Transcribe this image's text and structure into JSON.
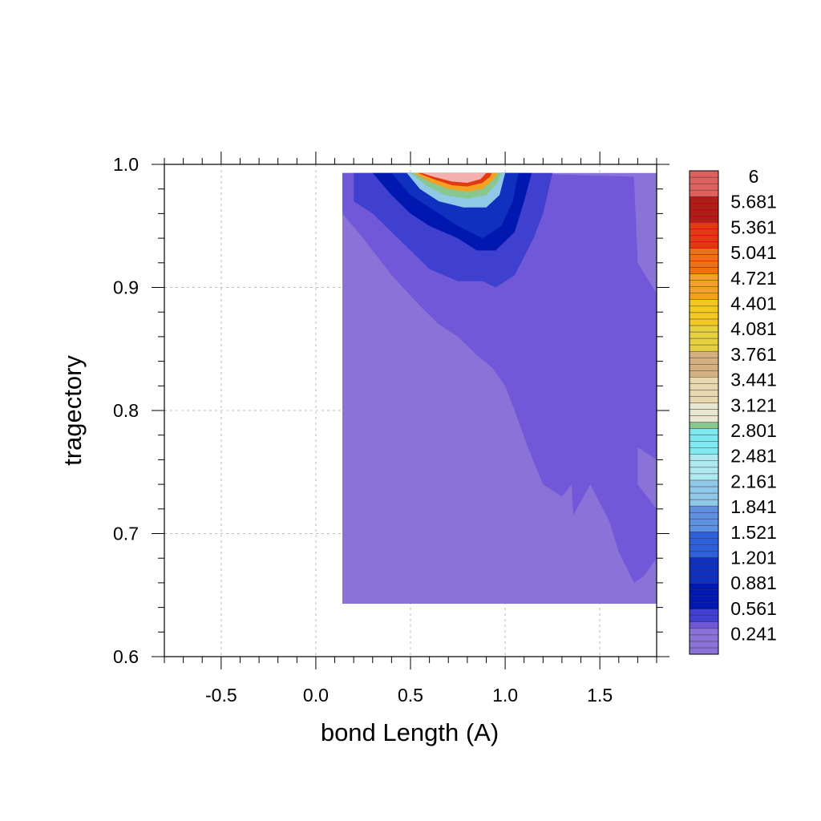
{
  "chart_data": {
    "type": "heatmap",
    "xlabel": "bond Length (A)",
    "ylabel": "tragectory",
    "xlim": [
      -0.8,
      1.8
    ],
    "ylim": [
      0.6,
      1.0
    ],
    "x_ticks": [
      "-0.5",
      "0.0",
      "0.5",
      "1.0",
      "1.5"
    ],
    "x_tick_values": [
      -0.5,
      0.0,
      0.5,
      1.0,
      1.5
    ],
    "y_ticks": [
      "0.6",
      "0.7",
      "0.8",
      "0.9",
      "1.0"
    ],
    "y_tick_values": [
      0.6,
      0.7,
      0.8,
      0.9,
      1.0
    ],
    "grid": true,
    "data_extent": {
      "x": [
        0.14,
        1.8
      ],
      "y": [
        0.643,
        0.993
      ]
    },
    "regions": [
      {
        "level": "0.241",
        "desc": "background",
        "polygon": [
          [
            0.14,
            0.643
          ],
          [
            1.8,
            0.643
          ],
          [
            1.8,
            0.993
          ],
          [
            0.14,
            0.993
          ]
        ]
      },
      {
        "level": "0.321",
        "polygon": [
          [
            0.14,
            0.96
          ],
          [
            0.25,
            0.94
          ],
          [
            0.4,
            0.91
          ],
          [
            0.55,
            0.885
          ],
          [
            0.65,
            0.87
          ],
          [
            0.75,
            0.86
          ],
          [
            0.85,
            0.845
          ],
          [
            0.93,
            0.835
          ],
          [
            1.0,
            0.82
          ],
          [
            1.05,
            0.8
          ],
          [
            1.12,
            0.77
          ],
          [
            1.2,
            0.74
          ],
          [
            1.3,
            0.73
          ],
          [
            1.35,
            0.74
          ],
          [
            1.36,
            0.715
          ],
          [
            1.45,
            0.74
          ],
          [
            1.55,
            0.71
          ],
          [
            1.6,
            0.685
          ],
          [
            1.68,
            0.66
          ],
          [
            1.73,
            0.665
          ],
          [
            1.8,
            0.68
          ],
          [
            1.8,
            0.72
          ],
          [
            1.7,
            0.74
          ],
          [
            1.7,
            0.77
          ],
          [
            1.8,
            0.76
          ],
          [
            1.8,
            0.895
          ],
          [
            1.7,
            0.92
          ],
          [
            1.68,
            0.99
          ],
          [
            1.0,
            0.993
          ],
          [
            0.14,
            0.993
          ]
        ]
      },
      {
        "level": "0.401",
        "polygon": [
          [
            0.2,
            0.993
          ],
          [
            0.2,
            0.97
          ],
          [
            0.3,
            0.96
          ],
          [
            0.4,
            0.945
          ],
          [
            0.5,
            0.93
          ],
          [
            0.6,
            0.915
          ],
          [
            0.75,
            0.905
          ],
          [
            0.88,
            0.905
          ],
          [
            0.95,
            0.9
          ],
          [
            1.05,
            0.91
          ],
          [
            1.15,
            0.94
          ],
          [
            1.2,
            0.96
          ],
          [
            1.25,
            0.993
          ]
        ]
      },
      {
        "level": "0.561",
        "polygon": [
          [
            0.3,
            0.993
          ],
          [
            0.4,
            0.975
          ],
          [
            0.5,
            0.96
          ],
          [
            0.6,
            0.95
          ],
          [
            0.75,
            0.94
          ],
          [
            0.85,
            0.93
          ],
          [
            0.95,
            0.93
          ],
          [
            1.05,
            0.945
          ],
          [
            1.1,
            0.97
          ],
          [
            1.14,
            0.993
          ]
        ]
      },
      {
        "level": "0.881",
        "polygon": [
          [
            0.4,
            0.993
          ],
          [
            0.5,
            0.975
          ],
          [
            0.6,
            0.965
          ],
          [
            0.75,
            0.95
          ],
          [
            0.88,
            0.94
          ],
          [
            0.98,
            0.95
          ],
          [
            1.04,
            0.97
          ],
          [
            1.07,
            0.993
          ]
        ]
      },
      {
        "level": "1.841",
        "polygon": [
          [
            0.48,
            0.993
          ],
          [
            0.55,
            0.98
          ],
          [
            0.65,
            0.97
          ],
          [
            0.78,
            0.965
          ],
          [
            0.9,
            0.965
          ],
          [
            0.97,
            0.975
          ],
          [
            1.0,
            0.993
          ]
        ]
      },
      {
        "level": "2.801",
        "polygon": [
          [
            0.5,
            0.993
          ],
          [
            0.58,
            0.983
          ],
          [
            0.68,
            0.975
          ],
          [
            0.8,
            0.972
          ],
          [
            0.9,
            0.975
          ],
          [
            0.96,
            0.985
          ],
          [
            0.98,
            0.993
          ]
        ]
      },
      {
        "level": "4.401",
        "polygon": [
          [
            0.52,
            0.993
          ],
          [
            0.6,
            0.986
          ],
          [
            0.7,
            0.98
          ],
          [
            0.8,
            0.978
          ],
          [
            0.88,
            0.98
          ],
          [
            0.94,
            0.988
          ],
          [
            0.96,
            0.993
          ]
        ]
      },
      {
        "level": "5.041",
        "polygon": [
          [
            0.54,
            0.993
          ],
          [
            0.62,
            0.988
          ],
          [
            0.72,
            0.983
          ],
          [
            0.8,
            0.982
          ],
          [
            0.88,
            0.985
          ],
          [
            0.92,
            0.99
          ],
          [
            0.93,
            0.993
          ]
        ]
      },
      {
        "level": "6",
        "polygon": [
          [
            0.56,
            0.993
          ],
          [
            0.62,
            0.99
          ],
          [
            0.72,
            0.986
          ],
          [
            0.8,
            0.985
          ],
          [
            0.87,
            0.988
          ],
          [
            0.9,
            0.993
          ]
        ]
      }
    ],
    "colorbar": {
      "labels": [
        "6",
        "5.681",
        "5.361",
        "5.041",
        "4.721",
        "4.401",
        "4.081",
        "3.761",
        "3.441",
        "3.121",
        "2.801",
        "2.481",
        "2.161",
        "1.841",
        "1.521",
        "1.201",
        "0.881",
        "0.561",
        "0.241"
      ],
      "stops": [
        {
          "v": 6.0,
          "color": "#f2b0b0"
        },
        {
          "v": 5.681,
          "color": "#e06060"
        },
        {
          "v": 5.361,
          "color": "#b81818"
        },
        {
          "v": 5.041,
          "color": "#e03a10"
        },
        {
          "v": 4.721,
          "color": "#f07010"
        },
        {
          "v": 4.401,
          "color": "#f4a020"
        },
        {
          "v": 4.081,
          "color": "#f4c820"
        },
        {
          "v": 3.761,
          "color": "#e6d040"
        },
        {
          "v": 3.441,
          "color": "#d4b080"
        },
        {
          "v": 3.121,
          "color": "#e8d8b0"
        },
        {
          "v": 2.901,
          "color": "#e8e8d0"
        },
        {
          "v": 2.801,
          "color": "#88c890"
        },
        {
          "v": 2.481,
          "color": "#80e8f0"
        },
        {
          "v": 2.161,
          "color": "#b0e8f0"
        },
        {
          "v": 1.841,
          "color": "#90c8e8"
        },
        {
          "v": 1.521,
          "color": "#6090e0"
        },
        {
          "v": 1.201,
          "color": "#3060d8"
        },
        {
          "v": 0.881,
          "color": "#1030c0"
        },
        {
          "v": 0.561,
          "color": "#0018b0"
        },
        {
          "v": 0.401,
          "color": "#4040d0"
        },
        {
          "v": 0.321,
          "color": "#7058d8"
        },
        {
          "v": 0.241,
          "color": "#8a72d8"
        },
        {
          "v": 0.0,
          "color": "#8a72d8"
        }
      ]
    }
  }
}
